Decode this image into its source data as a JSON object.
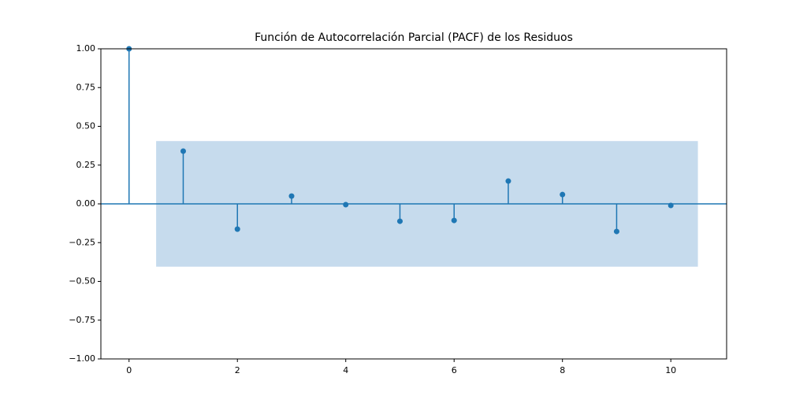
{
  "chart_data": {
    "type": "stem",
    "title": "Función de Autocorrelación Parcial (PACF) de los Residuos",
    "x": [
      0,
      1,
      2,
      3,
      4,
      5,
      6,
      7,
      8,
      9,
      10
    ],
    "values": [
      1.0,
      0.34,
      -0.163,
      0.05,
      -0.005,
      -0.112,
      -0.107,
      0.147,
      0.06,
      -0.178,
      -0.01
    ],
    "color": "#1f77b4",
    "band_color": "#c6dbed",
    "band_x": [
      0.5,
      10.5
    ],
    "band_y": [
      -0.405,
      0.405
    ],
    "xlim": [
      -0.52,
      11.03
    ],
    "ylim": [
      -1,
      1
    ],
    "xticks": [
      0,
      2,
      4,
      6,
      8,
      10
    ],
    "yticks": [
      {
        "value": -1,
        "label": "−1.00"
      },
      {
        "value": -0.75,
        "label": "−0.75"
      },
      {
        "value": -0.5,
        "label": "−0.50"
      },
      {
        "value": -0.25,
        "label": "−0.25"
      },
      {
        "value": 0,
        "label": "0.00"
      },
      {
        "value": 0.25,
        "label": "0.25"
      },
      {
        "value": 0.5,
        "label": "0.50"
      },
      {
        "value": 0.75,
        "label": "0.75"
      },
      {
        "value": 1,
        "label": "1.00"
      }
    ]
  }
}
